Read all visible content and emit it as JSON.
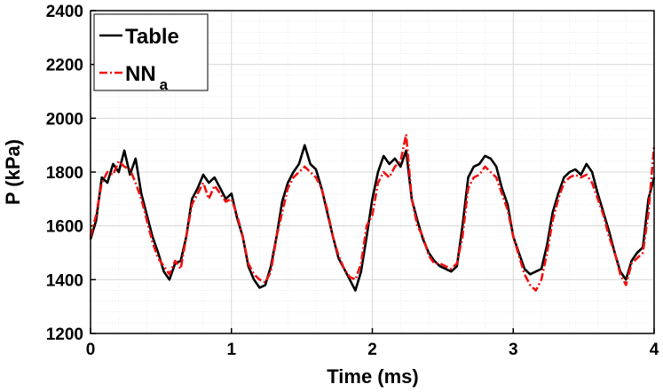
{
  "chart_data": {
    "type": "line",
    "xlabel": "Time (ms)",
    "ylabel": "P (kPa)",
    "xlim": [
      0,
      4
    ],
    "xticks": [
      0,
      1,
      2,
      3,
      4
    ],
    "ylim": [
      1200,
      2400
    ],
    "yticks": [
      1200,
      1400,
      1600,
      1800,
      2000,
      2200,
      2400
    ],
    "grid": true,
    "minor_grid": true,
    "legend_position": "upper left",
    "x": [
      0,
      0.04,
      0.08,
      0.12,
      0.16,
      0.2,
      0.24,
      0.28,
      0.32,
      0.36,
      0.4,
      0.44,
      0.48,
      0.52,
      0.56,
      0.6,
      0.64,
      0.68,
      0.72,
      0.76,
      0.8,
      0.84,
      0.88,
      0.92,
      0.96,
      1,
      1.04,
      1.08,
      1.12,
      1.16,
      1.2,
      1.24,
      1.28,
      1.32,
      1.36,
      1.4,
      1.44,
      1.48,
      1.52,
      1.56,
      1.6,
      1.64,
      1.68,
      1.72,
      1.76,
      1.8,
      1.84,
      1.88,
      1.92,
      1.96,
      2,
      2.04,
      2.08,
      2.12,
      2.16,
      2.2,
      2.24,
      2.28,
      2.32,
      2.36,
      2.4,
      2.44,
      2.48,
      2.52,
      2.56,
      2.6,
      2.64,
      2.68,
      2.72,
      2.76,
      2.8,
      2.84,
      2.88,
      2.92,
      2.96,
      3,
      3.04,
      3.08,
      3.12,
      3.16,
      3.2,
      3.24,
      3.28,
      3.32,
      3.36,
      3.4,
      3.44,
      3.48,
      3.52,
      3.56,
      3.6,
      3.64,
      3.68,
      3.72,
      3.76,
      3.8,
      3.84,
      3.88,
      3.92,
      3.96,
      4
    ],
    "series": [
      {
        "name": "Table",
        "color": "#000000",
        "dash": "solid",
        "values": [
          1550,
          1620,
          1780,
          1760,
          1830,
          1800,
          1880,
          1790,
          1850,
          1720,
          1640,
          1560,
          1500,
          1430,
          1400,
          1460,
          1470,
          1560,
          1700,
          1740,
          1790,
          1760,
          1780,
          1740,
          1700,
          1720,
          1630,
          1560,
          1450,
          1400,
          1370,
          1380,
          1450,
          1560,
          1690,
          1760,
          1800,
          1830,
          1900,
          1830,
          1810,
          1740,
          1650,
          1560,
          1480,
          1440,
          1400,
          1360,
          1430,
          1560,
          1700,
          1800,
          1860,
          1830,
          1850,
          1820,
          1880,
          1700,
          1620,
          1550,
          1500,
          1470,
          1450,
          1440,
          1430,
          1450,
          1600,
          1780,
          1820,
          1830,
          1860,
          1850,
          1820,
          1740,
          1680,
          1560,
          1500,
          1440,
          1420,
          1430,
          1440,
          1530,
          1650,
          1720,
          1780,
          1800,
          1810,
          1790,
          1830,
          1800,
          1720,
          1650,
          1580,
          1500,
          1430,
          1400,
          1470,
          1500,
          1520,
          1700,
          1780
        ]
      },
      {
        "name": "NN",
        "name_subscript": "a",
        "color": "#ee1111",
        "dash": "dashdot",
        "values": [
          1560,
          1640,
          1760,
          1800,
          1790,
          1840,
          1820,
          1810,
          1760,
          1700,
          1620,
          1540,
          1480,
          1450,
          1420,
          1470,
          1440,
          1560,
          1680,
          1720,
          1760,
          1700,
          1750,
          1720,
          1690,
          1700,
          1640,
          1560,
          1460,
          1420,
          1400,
          1390,
          1430,
          1560,
          1650,
          1740,
          1780,
          1800,
          1820,
          1800,
          1780,
          1740,
          1660,
          1560,
          1490,
          1440,
          1410,
          1400,
          1460,
          1600,
          1640,
          1760,
          1800,
          1780,
          1820,
          1840,
          1940,
          1700,
          1600,
          1560,
          1490,
          1460,
          1460,
          1450,
          1440,
          1460,
          1560,
          1740,
          1780,
          1790,
          1820,
          1800,
          1780,
          1720,
          1660,
          1560,
          1490,
          1420,
          1380,
          1360,
          1400,
          1500,
          1620,
          1700,
          1760,
          1780,
          1790,
          1780,
          1790,
          1760,
          1700,
          1640,
          1560,
          1500,
          1420,
          1380,
          1460,
          1480,
          1500,
          1650,
          1900
        ]
      }
    ]
  }
}
